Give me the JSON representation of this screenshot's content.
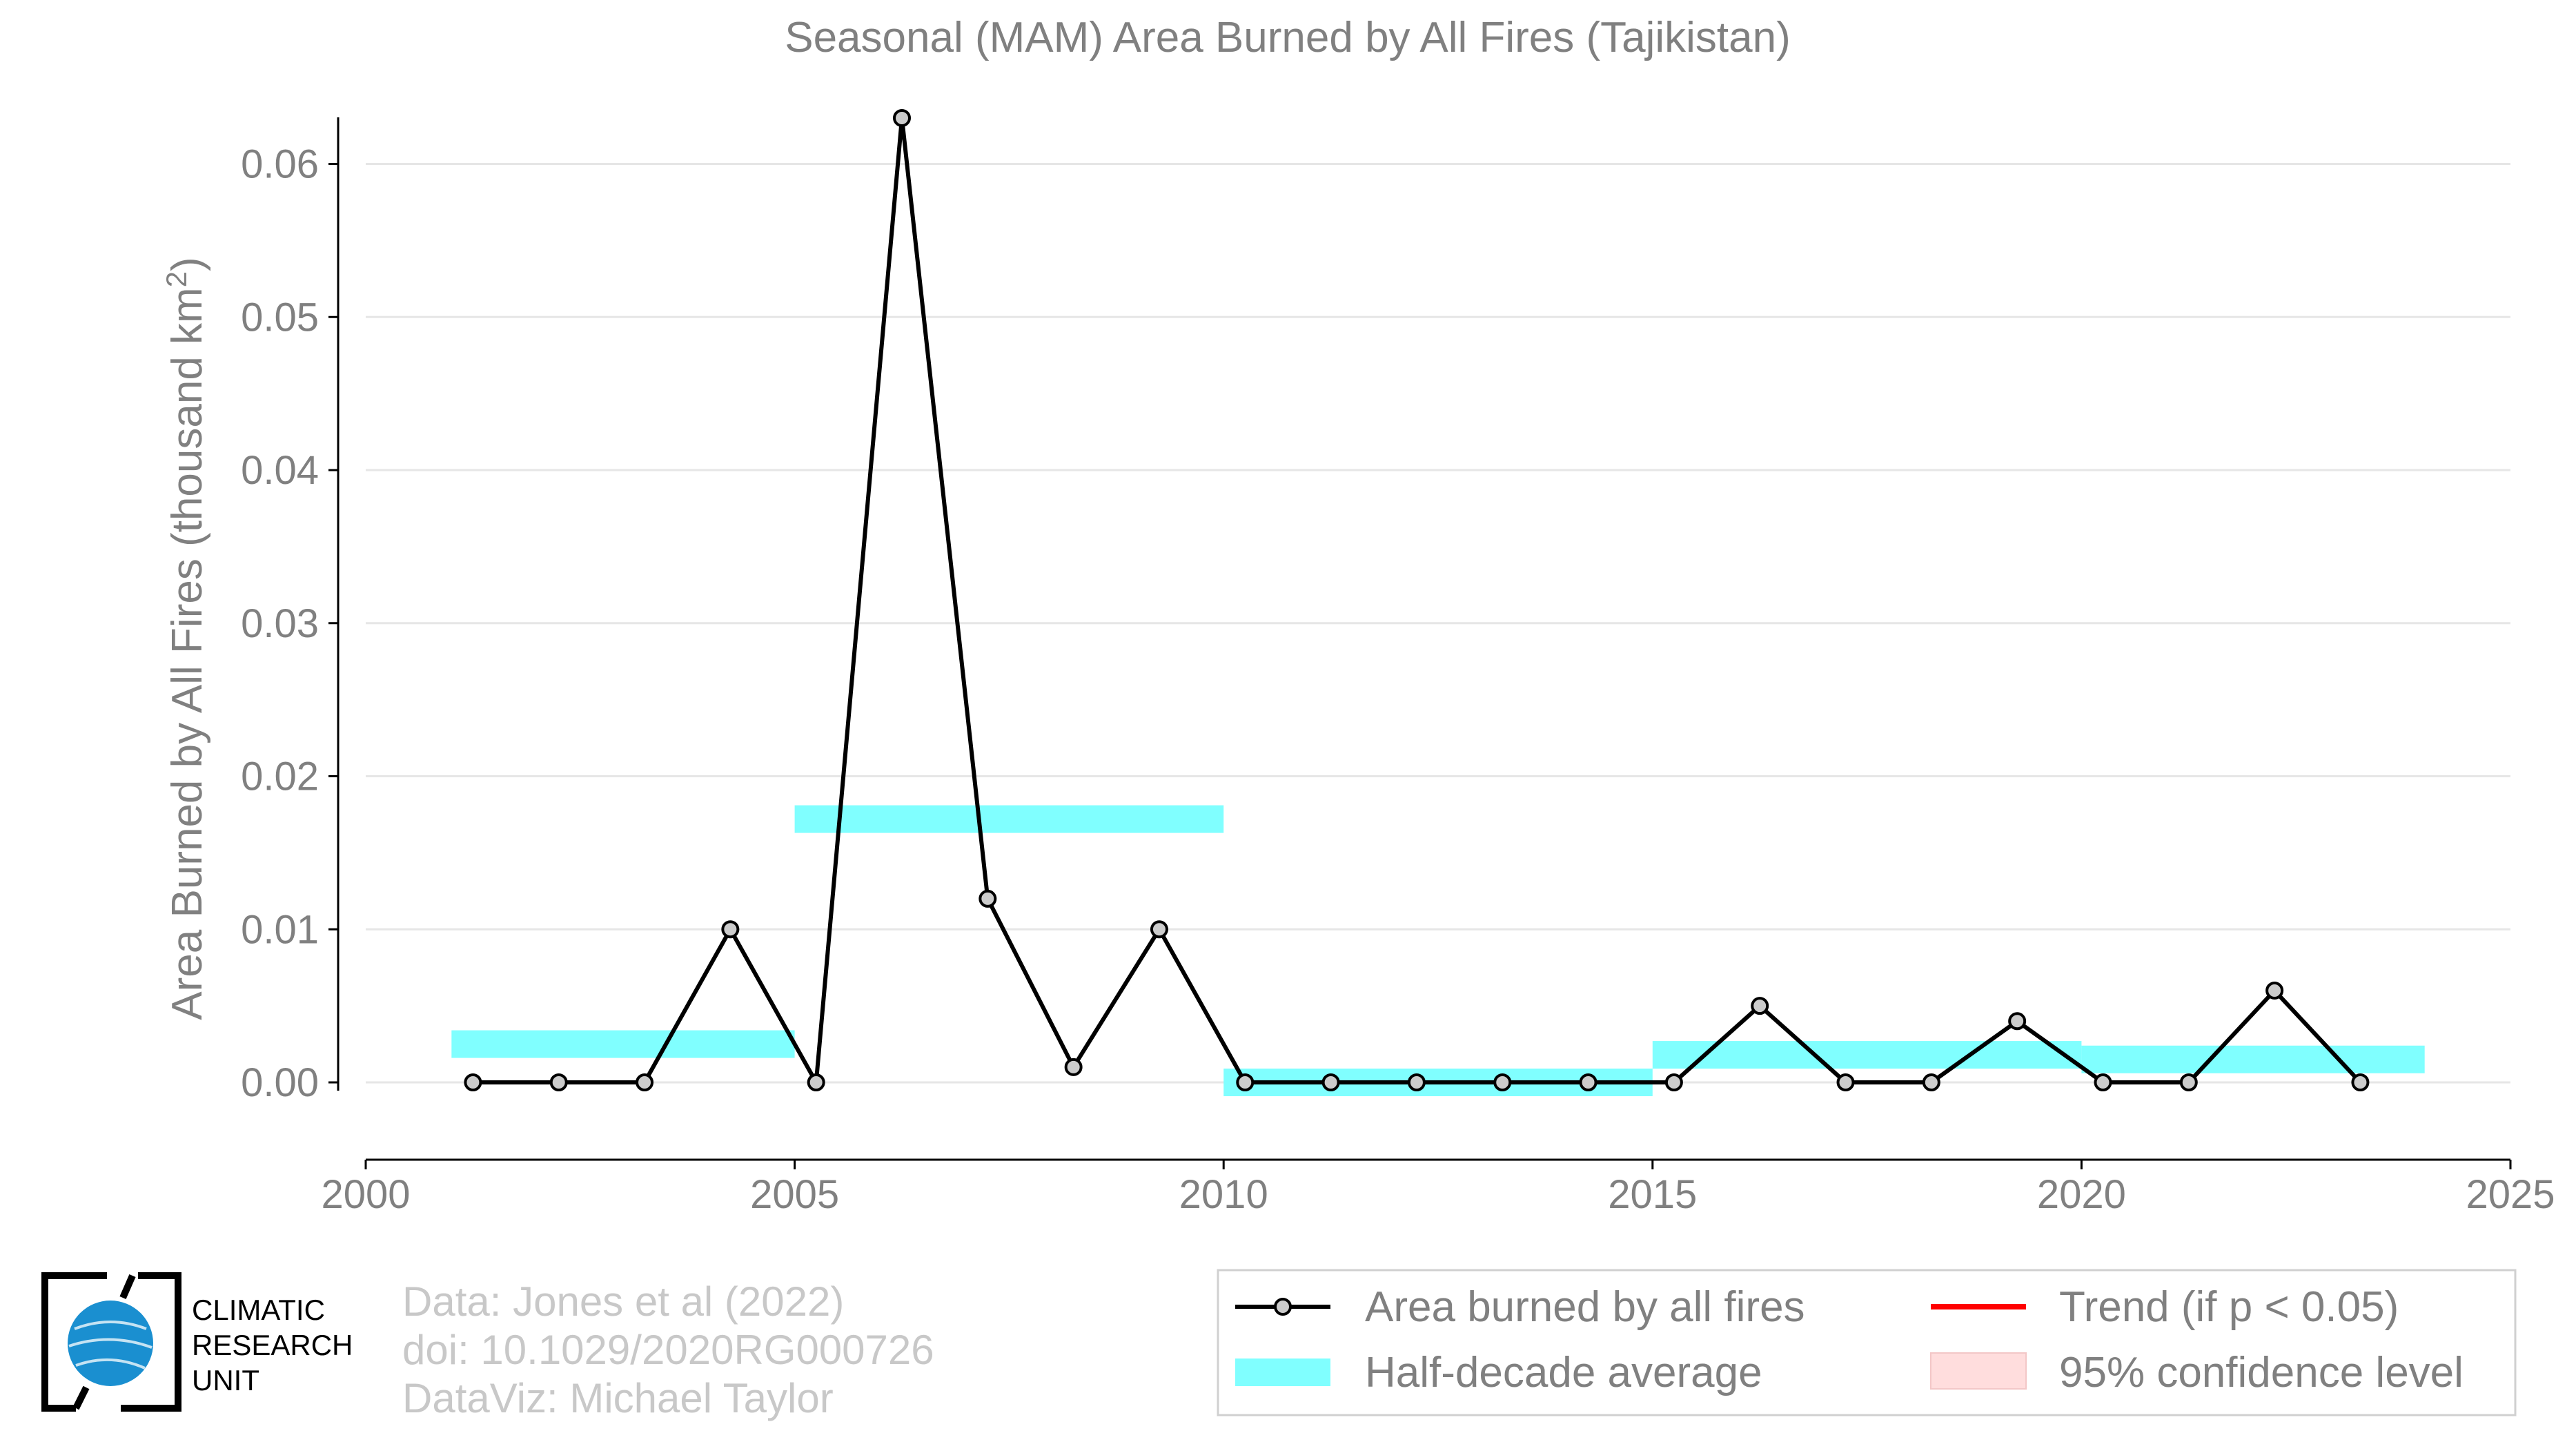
{
  "chart_data": {
    "type": "line",
    "title": "Seasonal (MAM) Area Burned by All Fires (Tajikistan)",
    "ylabel": "Area Burned by All Fires (thousand km",
    "ylabel_sup": "2",
    "ylabel_close": ")",
    "xlabel": "",
    "xlim": [
      2000,
      2025
    ],
    "ylim": [
      -0.005,
      0.065
    ],
    "x_ticks": [
      "2000",
      "2005",
      "2010",
      "2015",
      "2020",
      "2025"
    ],
    "y_ticks": [
      "0.00",
      "0.01",
      "0.02",
      "0.03",
      "0.04",
      "0.05",
      "0.06"
    ],
    "grid": true,
    "series": [
      {
        "name": "Area burned by all fires",
        "color": "#000000",
        "x": [
          2001.25,
          2002.25,
          2003.25,
          2004.25,
          2005.25,
          2006.25,
          2007.25,
          2008.25,
          2009.25,
          2010.25,
          2011.25,
          2012.25,
          2013.25,
          2014.25,
          2015.25,
          2016.25,
          2017.25,
          2018.25,
          2019.25,
          2020.25,
          2021.25,
          2022.25,
          2023.25
        ],
        "values": [
          0,
          0,
          0,
          0.01,
          0,
          0.063,
          0.012,
          0.001,
          0.01,
          0,
          0,
          0,
          0,
          0,
          0,
          0.005,
          0,
          0,
          0.004,
          0,
          0,
          0.006,
          0
        ]
      }
    ],
    "half_decade_average": {
      "name": "Half-decade average",
      "color": "#80ffff",
      "segments": [
        {
          "x0": 2001,
          "x1": 2005,
          "value": 0.0025
        },
        {
          "x0": 2005,
          "x1": 2010,
          "value": 0.0172
        },
        {
          "x0": 2010,
          "x1": 2015,
          "value": 0.0
        },
        {
          "x0": 2015,
          "x1": 2020,
          "value": 0.0018
        },
        {
          "x0": 2020,
          "x1": 2024,
          "value": 0.0015
        }
      ]
    },
    "legend": {
      "placement": "bottom-right",
      "items": [
        {
          "label": "Area burned by all fires",
          "kind": "line-marker",
          "color": "#000000"
        },
        {
          "label": "Trend (if p < 0.05)",
          "kind": "line",
          "color": "#ff0000"
        },
        {
          "label": "Half-decade average",
          "kind": "band",
          "color": "#80ffff"
        },
        {
          "label": "95% confidence level",
          "kind": "patch",
          "color": "#ffdddd"
        }
      ]
    }
  },
  "credits": {
    "line1": "Data: Jones et al (2022)",
    "line2": "doi: 10.1029/2020RG000726",
    "line3": "DataViz: Michael Taylor"
  },
  "logo": {
    "line1": "CLIMATIC",
    "line2": "RESEARCH",
    "line3": "UNIT",
    "globe_color": "#1a8fd0"
  }
}
